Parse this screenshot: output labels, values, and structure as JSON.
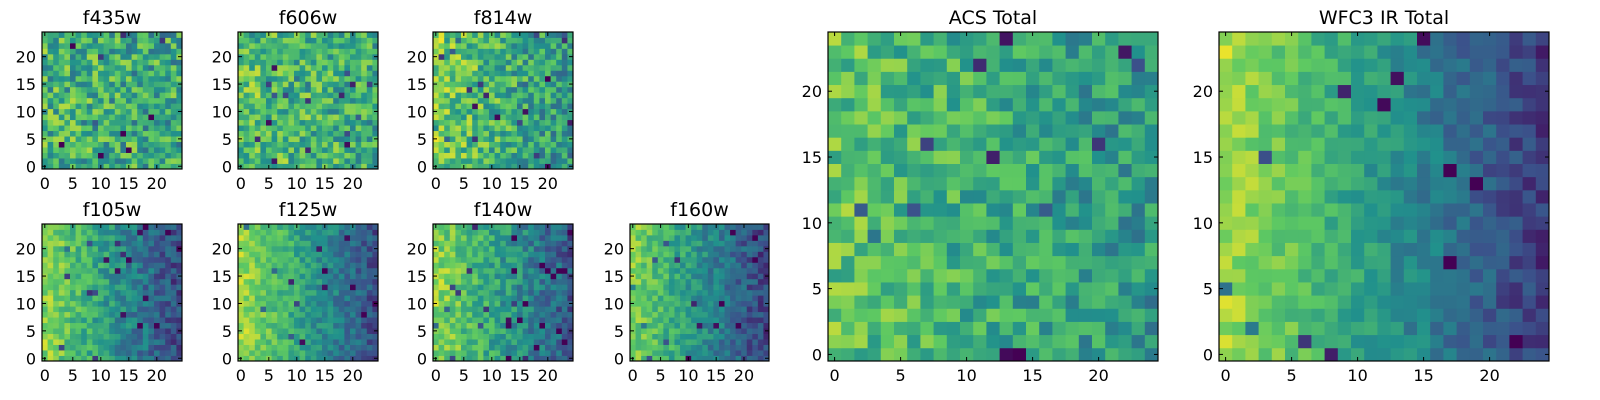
{
  "figure": {
    "colormap": "viridis",
    "colormap_stops": [
      "#440154",
      "#3b528b",
      "#21918c",
      "#5ec962",
      "#fde725"
    ],
    "frame_color": "#000000"
  },
  "chart_data": [
    {
      "type": "heatmap",
      "title": "f435w",
      "grid_size": 25,
      "trend": 0.05,
      "noise": 0.5,
      "base": 0.62,
      "seed": 11,
      "xlim": [
        -0.5,
        24.5
      ],
      "ylim": [
        -0.5,
        24.5
      ],
      "xticks": [
        0,
        5,
        10,
        15,
        20
      ],
      "yticks": [
        0,
        5,
        10,
        15,
        20
      ],
      "xlabel": "",
      "ylabel": ""
    },
    {
      "type": "heatmap",
      "title": "f606w",
      "grid_size": 25,
      "trend": 0.1,
      "noise": 0.45,
      "base": 0.66,
      "seed": 23,
      "xlim": [
        -0.5,
        24.5
      ],
      "ylim": [
        -0.5,
        24.5
      ],
      "xticks": [
        0,
        5,
        10,
        15,
        20
      ],
      "yticks": [
        0,
        5,
        10,
        15,
        20
      ],
      "xlabel": "",
      "ylabel": ""
    },
    {
      "type": "heatmap",
      "title": "f814w",
      "grid_size": 25,
      "trend": 0.25,
      "noise": 0.45,
      "base": 0.64,
      "seed": 37,
      "xlim": [
        -0.5,
        24.5
      ],
      "ylim": [
        -0.5,
        24.5
      ],
      "xticks": [
        0,
        5,
        10,
        15,
        20
      ],
      "yticks": [
        0,
        5,
        10,
        15,
        20
      ],
      "xlabel": "",
      "ylabel": ""
    },
    {
      "type": "heatmap",
      "title": "f105w",
      "grid_size": 25,
      "trend": 0.6,
      "noise": 0.28,
      "base": 0.52,
      "seed": 41,
      "xlim": [
        -0.5,
        24.5
      ],
      "ylim": [
        -0.5,
        24.5
      ],
      "xticks": [
        0,
        5,
        10,
        15,
        20
      ],
      "yticks": [
        0,
        5,
        10,
        15,
        20
      ],
      "xlabel": "",
      "ylabel": ""
    },
    {
      "type": "heatmap",
      "title": "f125w",
      "grid_size": 25,
      "trend": 0.6,
      "noise": 0.25,
      "base": 0.55,
      "seed": 53,
      "xlim": [
        -0.5,
        24.5
      ],
      "ylim": [
        -0.5,
        24.5
      ],
      "xticks": [
        0,
        5,
        10,
        15,
        20
      ],
      "yticks": [
        0,
        5,
        10,
        15,
        20
      ],
      "xlabel": "",
      "ylabel": ""
    },
    {
      "type": "heatmap",
      "title": "f140w",
      "grid_size": 25,
      "trend": 0.55,
      "noise": 0.3,
      "base": 0.55,
      "seed": 67,
      "xlim": [
        -0.5,
        24.5
      ],
      "ylim": [
        -0.5,
        24.5
      ],
      "xticks": [
        0,
        5,
        10,
        15,
        20
      ],
      "yticks": [
        0,
        5,
        10,
        15,
        20
      ],
      "xlabel": "",
      "ylabel": ""
    },
    {
      "type": "heatmap",
      "title": "f160w",
      "grid_size": 25,
      "trend": 0.6,
      "noise": 0.26,
      "base": 0.5,
      "seed": 79,
      "xlim": [
        -0.5,
        24.5
      ],
      "ylim": [
        -0.5,
        24.5
      ],
      "xticks": [
        0,
        5,
        10,
        15,
        20
      ],
      "yticks": [
        0,
        5,
        10,
        15,
        20
      ],
      "xlabel": "",
      "ylabel": ""
    },
    {
      "type": "heatmap",
      "title": "ACS Total",
      "grid_size": 25,
      "trend": 0.2,
      "noise": 0.35,
      "base": 0.62,
      "seed": 97,
      "xlim": [
        -0.5,
        24.5
      ],
      "ylim": [
        -0.5,
        24.5
      ],
      "xticks": [
        0,
        5,
        10,
        15,
        20
      ],
      "yticks": [
        0,
        5,
        10,
        15,
        20
      ],
      "xlabel": "",
      "ylabel": ""
    },
    {
      "type": "heatmap",
      "title": "WFC3 IR Total",
      "grid_size": 25,
      "trend": 0.7,
      "noise": 0.2,
      "base": 0.52,
      "seed": 113,
      "xlim": [
        -0.5,
        24.5
      ],
      "ylim": [
        -0.5,
        24.5
      ],
      "xticks": [
        0,
        5,
        10,
        15,
        20
      ],
      "yticks": [
        0,
        5,
        10,
        15,
        20
      ],
      "xlabel": "",
      "ylabel": ""
    }
  ]
}
